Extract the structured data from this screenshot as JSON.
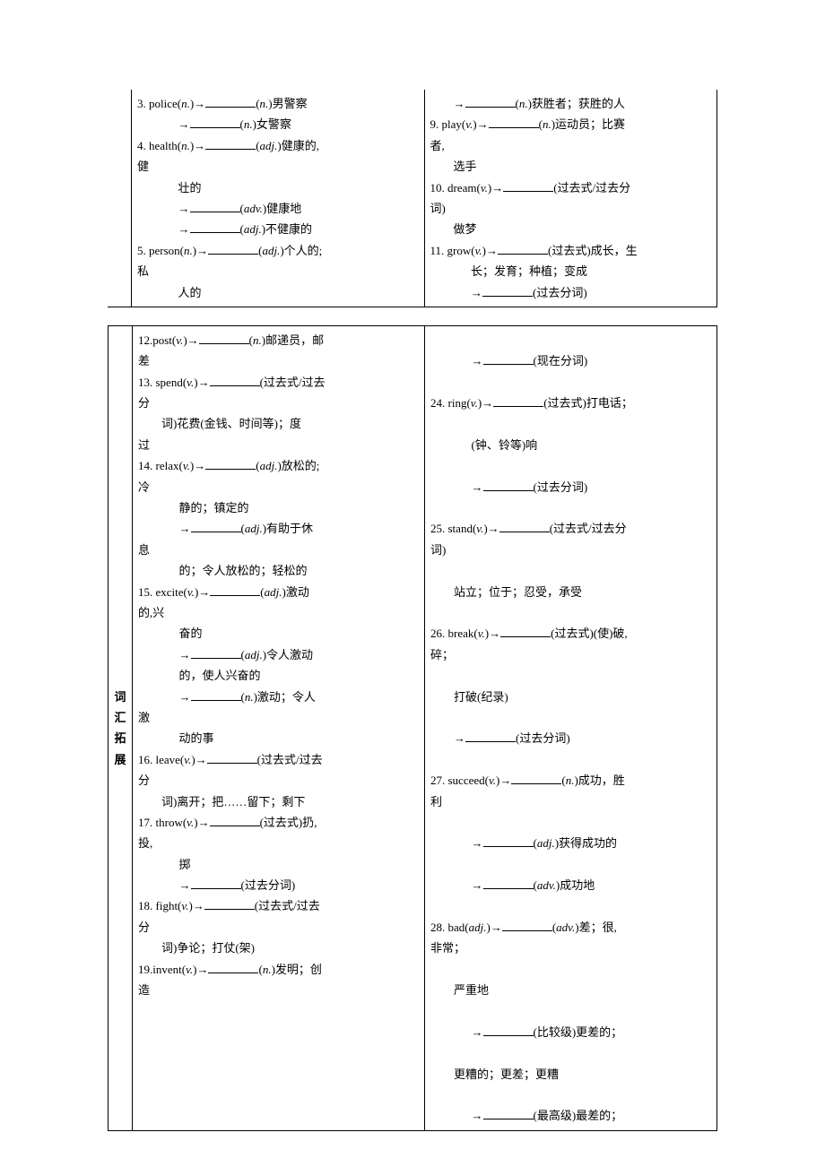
{
  "table1": {
    "left": {
      "l1": "3. police(",
      "l1b": ")→",
      "l1c": "(",
      "l1d": ")男警察",
      "l2a": "→",
      "l2b": "(",
      "l2c": ")女警察",
      "l3": "4. health(",
      "l3b": ")→",
      "l3c": "(",
      "l3d": ")健康的,",
      "l3e": "健",
      "l4": "壮的",
      "l5a": "→",
      "l5b": "(",
      "l5c": ")健康地",
      "l6a": "→",
      "l6b": "(",
      "l6c": ")不健康的",
      "l7": "5. person(",
      "l7b": ")→",
      "l7c": "(",
      "l7d": ")个人的;",
      "l7e": "私",
      "l8": "人的",
      "n": "n.",
      "adj": "adj.",
      "adv": "adv."
    },
    "right": {
      "l1a": "→",
      "l1b": "(",
      "l1c": ")获胜者；获胜的人",
      "l2": "9. play(",
      "l2b": ")→",
      "l2c": "(",
      "l2d": ")运动员；比赛",
      "l2e": "者,",
      "l3": "选手",
      "l4": "10. dream(",
      "l4b": ")→",
      "l4c": "(过去式/过去分",
      "l4d": "词)",
      "l5": "做梦",
      "l6": "11. grow(",
      "l6b": ")→",
      "l6c": "(过去式)成长，生",
      "l7": "长；发育；种植；变成",
      "l8a": "→",
      "l8b": "(过去分词)",
      "n": "n.",
      "v": "v."
    }
  },
  "table2": {
    "label": "词汇拓展",
    "left": {
      "l1": "12.post(",
      "l1b": ")→",
      "l1c": "(",
      "l1d": ")邮递员，邮",
      "l1e": "差",
      "l2": "13. spend(",
      "l2b": ")→",
      "l2c": "(过去式/过去",
      "l2d": "分",
      "l3": "词)花费(金钱、时间等)；度",
      "l3b": "过",
      "l4": "14. relax(",
      "l4b": ")→",
      "l4c": "(",
      "l4d": ")放松的;",
      "l4e": "冷",
      "l5": "静的；镇定的",
      "l6a": "→",
      "l6b": "(",
      "l6c": ")有助于休",
      "l6d": "息",
      "l7": "的；令人放松的；轻松的",
      "l8": "15. excite(",
      "l8b": ")→",
      "l8c": "(",
      "l8d": ")激动",
      "l8e": "的,兴",
      "l9": "奋的",
      "l10a": "→",
      "l10b": "(",
      "l10c": ")令人激动",
      "l10d": "的，使人兴奋的",
      "l11a": "→",
      "l11b": "(",
      "l11c": ")激动；令人",
      "l11d": "激",
      "l12": "动的事",
      "l13": "16. leave(",
      "l13b": ")→",
      "l13c": "(过去式/过去",
      "l13d": "分",
      "l14": "词)离开；把……留下；剩下",
      "l15": "17. throw(",
      "l15b": ")→",
      "l15c": "(过去式)扔,",
      "l15d": "投,",
      "l16": "掷",
      "l17a": "→",
      "l17b": "(过去分词)",
      "l18": "18. fight(",
      "l18b": ")→",
      "l18c": "(过去式/过去",
      "l18d": "分",
      "l19": "词)争论；打仗(架)",
      "l20": "19.invent(",
      "l20b": ")→",
      "l20c": "(",
      "l20d": ")发明；创",
      "l20e": "造",
      "n": "n.",
      "v": "v.",
      "adj": "adj."
    },
    "right": {
      "l1a": "→",
      "l1b": "(现在分词)",
      "l2": "24. ring(",
      "l2b": ")→",
      "l2c": "(过去式)打电话；",
      "l3": "(钟、铃等)响",
      "l4a": "→",
      "l4b": "(过去分词)",
      "l5": "25. stand(",
      "l5b": ")→",
      "l5c": "(过去式/过去分",
      "l5d": "词)",
      "l6": "站立；位于；忍受，承受",
      "l7": "26. break(",
      "l7b": ")→",
      "l7c": "(过去式)(使)破,",
      "l7d": "碎；",
      "l8": "打破(纪录)",
      "l9a": "→",
      "l9b": "(过去分词)",
      "l10": "27. succeed(",
      "l10b": ")→",
      "l10c": "(",
      "l10d": ")成功，胜",
      "l10e": "利",
      "l11a": "→",
      "l11b": "(",
      "l11c": ")获得成功的",
      "l12a": "→",
      "l12b": "(",
      "l12c": ")成功地",
      "l13": "28. bad(",
      "l13b": ")→",
      "l13c": "(",
      "l13d": ")差；很,",
      "l13e": "非常；",
      "l14": "严重地",
      "l15a": "→",
      "l15b": "(比较级)更差的；",
      "l16": "更糟的；更差；更糟",
      "l17a": "→",
      "l17b": "(最高级)最差的；",
      "n": "n.",
      "v": "v.",
      "adj": "adj.",
      "adv": "adv."
    }
  }
}
